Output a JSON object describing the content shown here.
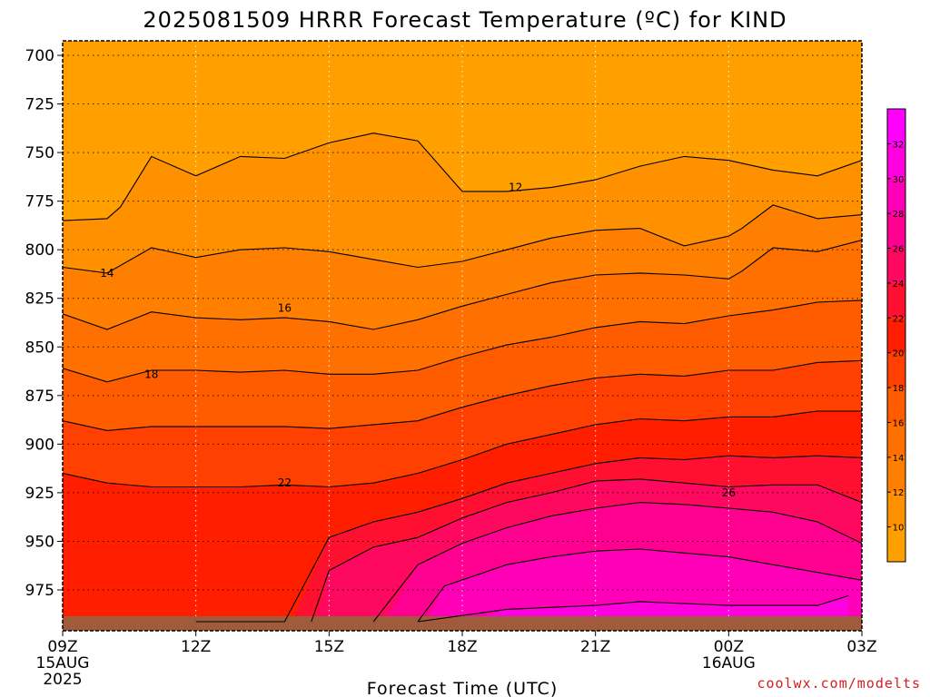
{
  "chart_data": {
    "type": "heatmap",
    "title": "2025081509 HRRR Forecast Temperature (ºC) for KIND",
    "xlabel": "Forecast Time (UTC)",
    "ylabel": "",
    "x_ticks": [
      {
        "label": "09Z",
        "sub": [
          "15AUG",
          "2025"
        ]
      },
      {
        "label": "12Z",
        "sub": []
      },
      {
        "label": "15Z",
        "sub": []
      },
      {
        "label": "18Z",
        "sub": []
      },
      {
        "label": "21Z",
        "sub": []
      },
      {
        "label": "00Z",
        "sub": [
          "16AUG"
        ]
      },
      {
        "label": "03Z",
        "sub": []
      }
    ],
    "x_hours": [
      0,
      3,
      6,
      9,
      12,
      15,
      18
    ],
    "y_ticks": [
      "700",
      "725",
      "750",
      "775",
      "800",
      "825",
      "850",
      "875",
      "900",
      "925",
      "950",
      "975"
    ],
    "y_values": [
      700,
      725,
      750,
      775,
      800,
      825,
      850,
      875,
      900,
      925,
      950,
      975
    ],
    "ylim": [
      990,
      695
    ],
    "xlim": [
      0,
      18
    ],
    "grid": true,
    "colorbar": {
      "levels": [
        10,
        12,
        14,
        16,
        18,
        20,
        22,
        24,
        26,
        28,
        30,
        32
      ],
      "labels": [
        "10",
        "12",
        "14",
        "16",
        "18",
        "20",
        "22",
        "24",
        "26",
        "28",
        "30",
        "32"
      ],
      "colors": [
        "#ffa000",
        "#ff9000",
        "#ff8000",
        "#ff7000",
        "#ff5c00",
        "#ff4000",
        "#ff1e00",
        "#ff1030",
        "#ff0860",
        "#ff0090",
        "#ff00b8",
        "#ff00de",
        "#ff00ff"
      ]
    },
    "contours": [
      {
        "level": 12,
        "label": "12",
        "label_at": [
          10.2,
          768
        ],
        "points": [
          [
            0,
            785
          ],
          [
            1,
            784
          ],
          [
            1.3,
            778
          ],
          [
            2,
            752
          ],
          [
            3,
            762
          ],
          [
            4,
            752
          ],
          [
            5,
            753
          ],
          [
            6,
            745
          ],
          [
            7,
            740
          ],
          [
            8,
            744
          ],
          [
            9,
            770
          ],
          [
            10,
            770
          ],
          [
            11,
            768
          ],
          [
            12,
            764
          ],
          [
            13,
            757
          ],
          [
            14,
            752
          ],
          [
            15,
            754
          ],
          [
            16,
            759
          ],
          [
            17,
            762
          ],
          [
            18,
            754
          ]
        ]
      },
      {
        "level": 14,
        "label": "14",
        "label_at": [
          1,
          812
        ],
        "points": [
          [
            0,
            809
          ],
          [
            1,
            812
          ],
          [
            2,
            799
          ],
          [
            3,
            804
          ],
          [
            4,
            800
          ],
          [
            5,
            799
          ],
          [
            6,
            801
          ],
          [
            7,
            805
          ],
          [
            8,
            809
          ],
          [
            9,
            806
          ],
          [
            10,
            800
          ],
          [
            11,
            794
          ],
          [
            12,
            790
          ],
          [
            13,
            789
          ],
          [
            14,
            798
          ],
          [
            15,
            793
          ],
          [
            15.3,
            789
          ],
          [
            16,
            777
          ],
          [
            17,
            784
          ],
          [
            18,
            782
          ]
        ]
      },
      {
        "level": 16,
        "label": "16",
        "label_at": [
          5,
          830
        ],
        "points": [
          [
            0,
            833
          ],
          [
            1,
            841
          ],
          [
            2,
            832
          ],
          [
            3,
            835
          ],
          [
            4,
            836
          ],
          [
            5,
            835
          ],
          [
            6,
            837
          ],
          [
            7,
            841
          ],
          [
            8,
            836
          ],
          [
            9,
            829
          ],
          [
            10,
            823
          ],
          [
            11,
            817
          ],
          [
            12,
            813
          ],
          [
            13,
            812
          ],
          [
            14,
            813
          ],
          [
            15,
            815
          ],
          [
            15.3,
            811
          ],
          [
            16,
            799
          ],
          [
            17,
            801
          ],
          [
            18,
            795
          ]
        ]
      },
      {
        "level": 18,
        "label": "18",
        "label_at": [
          2,
          864
        ],
        "points": [
          [
            0,
            861
          ],
          [
            1,
            868
          ],
          [
            2,
            862
          ],
          [
            3,
            862
          ],
          [
            4,
            863
          ],
          [
            5,
            862
          ],
          [
            6,
            864
          ],
          [
            7,
            864
          ],
          [
            8,
            862
          ],
          [
            9,
            855
          ],
          [
            10,
            849
          ],
          [
            11,
            845
          ],
          [
            12,
            840
          ],
          [
            13,
            837
          ],
          [
            14,
            838
          ],
          [
            15,
            834
          ],
          [
            16,
            831
          ],
          [
            17,
            827
          ],
          [
            18,
            826
          ]
        ]
      },
      {
        "level": 20,
        "label": "",
        "label_at": null,
        "points": [
          [
            0,
            888
          ],
          [
            1,
            893
          ],
          [
            2,
            891
          ],
          [
            3,
            891
          ],
          [
            4,
            891
          ],
          [
            5,
            891
          ],
          [
            6,
            892
          ],
          [
            7,
            890
          ],
          [
            8,
            888
          ],
          [
            9,
            881
          ],
          [
            10,
            875
          ],
          [
            11,
            870
          ],
          [
            12,
            866
          ],
          [
            13,
            864
          ],
          [
            14,
            865
          ],
          [
            15,
            862
          ],
          [
            16,
            862
          ],
          [
            17,
            858
          ],
          [
            18,
            857
          ]
        ]
      },
      {
        "level": 22,
        "label": "22",
        "label_at": [
          5,
          920
        ],
        "points": [
          [
            0,
            915
          ],
          [
            1,
            920
          ],
          [
            2,
            922
          ],
          [
            3,
            922
          ],
          [
            4,
            922
          ],
          [
            5,
            921
          ],
          [
            6,
            922
          ],
          [
            7,
            920
          ],
          [
            8,
            915
          ],
          [
            9,
            908
          ],
          [
            10,
            900
          ],
          [
            11,
            895
          ],
          [
            12,
            890
          ],
          [
            13,
            887
          ],
          [
            14,
            888
          ],
          [
            15,
            886
          ],
          [
            16,
            886
          ],
          [
            17,
            883
          ],
          [
            18,
            883
          ]
        ]
      },
      {
        "level": 24,
        "label": "",
        "label_at": null,
        "points": [
          [
            3,
            1000
          ],
          [
            4,
            1000
          ],
          [
            5,
            1000
          ],
          [
            6,
            948
          ],
          [
            7,
            940
          ],
          [
            8,
            935
          ],
          [
            9,
            928
          ],
          [
            10,
            920
          ],
          [
            11,
            915
          ],
          [
            12,
            910
          ],
          [
            13,
            907
          ],
          [
            14,
            908
          ],
          [
            15,
            906
          ],
          [
            16,
            907
          ],
          [
            17,
            906
          ],
          [
            18,
            907
          ]
        ]
      },
      {
        "level": 26,
        "label": "26",
        "label_at": [
          15,
          925
        ],
        "points": [
          [
            5.6,
            1000
          ],
          [
            6,
            965
          ],
          [
            7,
            953
          ],
          [
            8,
            948
          ],
          [
            9,
            938
          ],
          [
            10,
            930
          ],
          [
            11,
            925
          ],
          [
            12,
            919
          ],
          [
            13,
            918
          ],
          [
            14,
            920
          ],
          [
            15,
            922
          ],
          [
            16,
            921
          ],
          [
            17,
            921
          ],
          [
            18,
            930
          ]
        ]
      },
      {
        "level": 28,
        "label": "",
        "label_at": null,
        "points": [
          [
            7,
            1000
          ],
          [
            8,
            962
          ],
          [
            9,
            951
          ],
          [
            10,
            943
          ],
          [
            11,
            937
          ],
          [
            12,
            933
          ],
          [
            13,
            930
          ],
          [
            14,
            931
          ],
          [
            15,
            933
          ],
          [
            16,
            935
          ],
          [
            17,
            940
          ],
          [
            18,
            951
          ]
        ]
      },
      {
        "level": 30,
        "label": "",
        "label_at": null,
        "points": [
          [
            8,
            1000
          ],
          [
            8.6,
            973
          ],
          [
            9.5,
            966
          ],
          [
            10,
            962
          ],
          [
            11,
            958
          ],
          [
            12,
            955
          ],
          [
            13,
            954
          ],
          [
            14,
            956
          ],
          [
            15,
            958
          ],
          [
            16,
            962
          ],
          [
            17,
            966
          ],
          [
            18,
            970
          ]
        ]
      },
      {
        "level": 32,
        "label": "",
        "label_at": null,
        "points": [
          [
            8,
            1000
          ],
          [
            10,
            985
          ],
          [
            12,
            983
          ],
          [
            13,
            981
          ],
          [
            14,
            982
          ],
          [
            15,
            983
          ],
          [
            16,
            983
          ],
          [
            17,
            983
          ],
          [
            17.7,
            978
          ]
        ]
      }
    ]
  },
  "credit": "coolwx.com/modelts",
  "colors": {
    "ground": "#a05a3c",
    "background": "#ffffff",
    "contour": "#000000",
    "grid": "#222222"
  }
}
